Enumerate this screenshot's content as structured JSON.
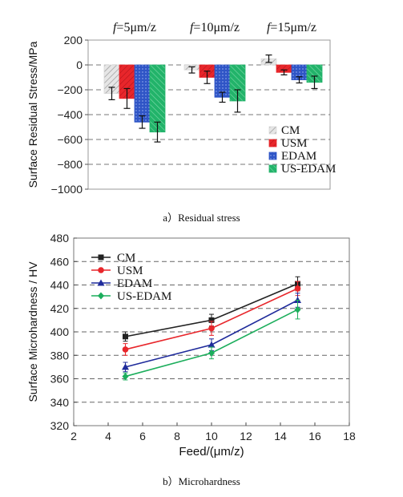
{
  "chart_data": [
    {
      "type": "bar",
      "ylabel": "Surface Residual Stress/MPa",
      "ylim": [
        -1000,
        200
      ],
      "yticks": [
        -1000,
        -800,
        -600,
        -400,
        -200,
        0,
        200
      ],
      "grid": "dashed horizontal",
      "groups": [
        "f=5μm/z",
        "f=10μm/z",
        "f=15μm/z"
      ],
      "series": [
        {
          "name": "CM",
          "values": [
            -230,
            -40,
            50
          ],
          "errors": [
            50,
            25,
            30
          ],
          "color": "#d9d9d9",
          "pattern": "hatch"
        },
        {
          "name": "USM",
          "values": [
            -270,
            -100,
            -60
          ],
          "errors": [
            80,
            50,
            20
          ],
          "color": "#e8262b",
          "pattern": "hatch"
        },
        {
          "name": "EDAM",
          "values": [
            -460,
            -260,
            -120
          ],
          "errors": [
            50,
            40,
            25
          ],
          "color": "#2f55c6",
          "pattern": "dots"
        },
        {
          "name": "US-EDAM",
          "values": [
            -540,
            -290,
            -140
          ],
          "errors": [
            80,
            90,
            50
          ],
          "color": "#22b36a",
          "pattern": "hatch"
        }
      ],
      "legend": "bottom-right",
      "caption": "a）Residual stress"
    },
    {
      "type": "line",
      "xlabel": "Feed/(μm/z)",
      "ylabel": "Surface Microhardness / HV",
      "xlim": [
        2,
        18
      ],
      "ylim": [
        320,
        480
      ],
      "xticks": [
        2,
        4,
        6,
        8,
        10,
        12,
        14,
        16,
        18
      ],
      "yticks": [
        320,
        340,
        360,
        380,
        400,
        420,
        440,
        460,
        480
      ],
      "grid": "dashed horizontal",
      "x": [
        5,
        10,
        15
      ],
      "series": [
        {
          "name": "CM",
          "values": [
            396,
            410,
            441
          ],
          "errors": [
            4,
            5,
            6
          ],
          "color": "#222222",
          "marker": "square"
        },
        {
          "name": "USM",
          "values": [
            385,
            403,
            437
          ],
          "errors": [
            5,
            6,
            6
          ],
          "color": "#e8262b",
          "marker": "circle"
        },
        {
          "name": "EDAM",
          "values": [
            370,
            389,
            427
          ],
          "errors": [
            4,
            5,
            6
          ],
          "color": "#1f2b9b",
          "marker": "triangle"
        },
        {
          "name": "US-EDAM",
          "values": [
            362,
            382,
            419
          ],
          "errors": [
            3,
            5,
            8
          ],
          "color": "#1cae5c",
          "marker": "diamond"
        }
      ],
      "legend": "top-left",
      "caption": "b）Microhardness"
    }
  ]
}
